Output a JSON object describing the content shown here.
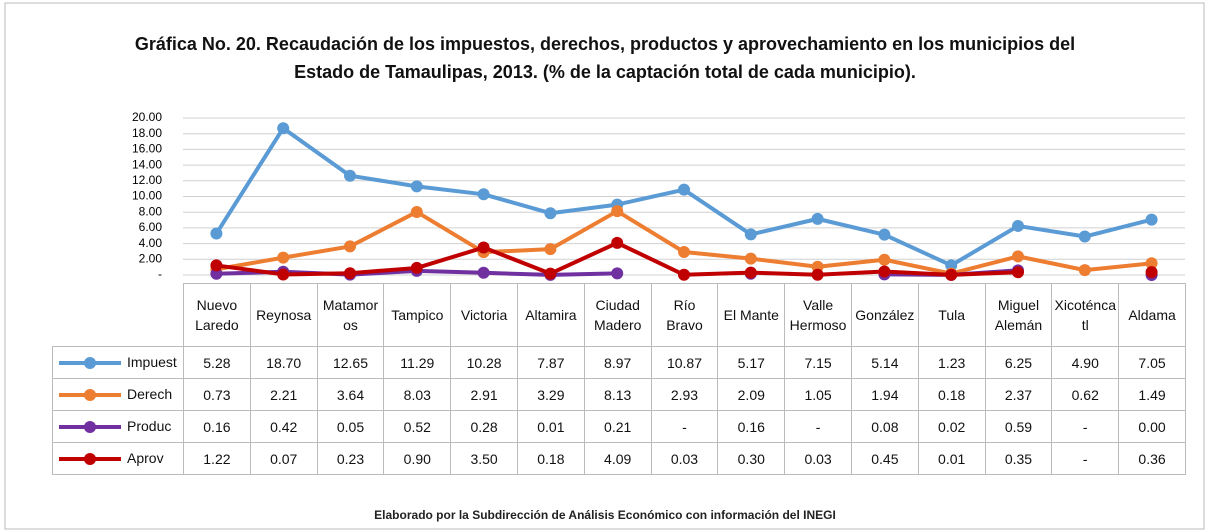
{
  "chart_data": {
    "type": "line",
    "title": "Gráfica No. 20. Recaudación de los impuestos, derechos, productos y aprovechamiento en los municipios del Estado de Tamaulipas, 2013. (% de la captación total de cada municipio).",
    "footer": "Elaborado por la Subdirección de Análisis Económico con información del INEGI",
    "categories": [
      "Nuevo Laredo",
      "Reynosa",
      "Matamoros",
      "Tampico",
      "Victoria",
      "Altamira",
      "Ciudad Madero",
      "Río Bravo",
      "El Mante",
      "Valle Hermoso",
      "González",
      "Tula",
      "Miguel Alemán",
      "Xicoténcatl",
      "Aldama"
    ],
    "ylim": [
      0,
      20
    ],
    "yticks": [
      {
        "value": 0,
        "label": "-"
      },
      {
        "value": 2,
        "label": "2.00"
      },
      {
        "value": 4,
        "label": "4.00"
      },
      {
        "value": 6,
        "label": "6.00"
      },
      {
        "value": 8,
        "label": "8.00"
      },
      {
        "value": 10,
        "label": "10.00"
      },
      {
        "value": 12,
        "label": "12.00"
      },
      {
        "value": 14,
        "label": "14.00"
      },
      {
        "value": 16,
        "label": "16.00"
      },
      {
        "value": 18,
        "label": "18.00"
      },
      {
        "value": 20,
        "label": "20.00"
      }
    ],
    "grid": true,
    "series": [
      {
        "name": "Impuest",
        "color": "#5b9bd5",
        "values": [
          5.28,
          18.7,
          12.65,
          11.29,
          10.28,
          7.87,
          8.97,
          10.87,
          5.17,
          7.15,
          5.14,
          1.23,
          6.25,
          4.9,
          7.05
        ],
        "value_labels": [
          "5.28",
          "18.70",
          "12.65",
          "11.29",
          "10.28",
          "7.87",
          "8.97",
          "10.87",
          "5.17",
          "7.15",
          "5.14",
          "1.23",
          "6.25",
          "4.90",
          "7.05"
        ]
      },
      {
        "name": "Derech",
        "color": "#ed7d31",
        "values": [
          0.73,
          2.21,
          3.64,
          8.03,
          2.91,
          3.29,
          8.13,
          2.93,
          2.09,
          1.05,
          1.94,
          0.18,
          2.37,
          0.62,
          1.49
        ],
        "value_labels": [
          "0.73",
          "2.21",
          "3.64",
          "8.03",
          "2.91",
          "3.29",
          "8.13",
          "2.93",
          "2.09",
          "1.05",
          "1.94",
          "0.18",
          "2.37",
          "0.62",
          "1.49"
        ]
      },
      {
        "name": "Produc",
        "color": "#7030a0",
        "values": [
          0.16,
          0.42,
          0.05,
          0.52,
          0.28,
          0.01,
          0.21,
          null,
          0.16,
          null,
          0.08,
          0.02,
          0.59,
          null,
          0
        ],
        "value_labels": [
          "0.16",
          "0.42",
          "0.05",
          "0.52",
          "0.28",
          "0.01",
          "0.21",
          "-",
          "0.16",
          "-",
          "0.08",
          "0.02",
          "0.59",
          "-",
          "0.00"
        ]
      },
      {
        "name": "Aprov",
        "color": "#c00000",
        "values": [
          1.22,
          0.07,
          0.23,
          0.9,
          3.5,
          0.18,
          4.09,
          0.03,
          0.3,
          0.03,
          0.45,
          0.01,
          0.35,
          null,
          0.36
        ],
        "value_labels": [
          "1.22",
          "0.07",
          "0.23",
          "0.90",
          "3.50",
          "0.18",
          "4.09",
          "0.03",
          "0.30",
          "0.03",
          "0.45",
          "0.01",
          "0.35",
          "-",
          "0.36"
        ]
      }
    ]
  }
}
